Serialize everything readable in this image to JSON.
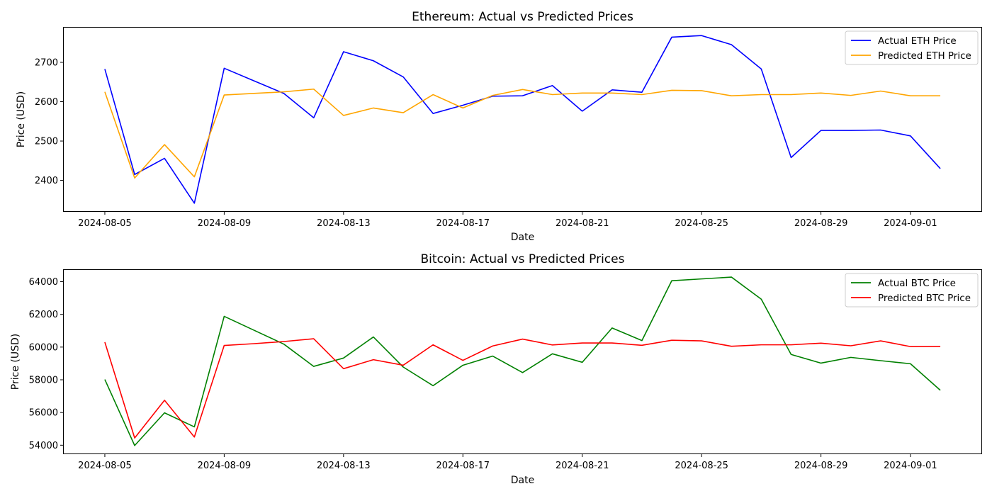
{
  "chart_data": [
    {
      "type": "line",
      "title": "Ethereum: Actual vs Predicted Prices",
      "xlabel": "Date",
      "ylabel": "Price (USD)",
      "x": [
        "2024-08-05",
        "2024-08-06",
        "2024-08-07",
        "2024-08-08",
        "2024-08-09",
        "2024-08-10",
        "2024-08-11",
        "2024-08-12",
        "2024-08-13",
        "2024-08-14",
        "2024-08-15",
        "2024-08-16",
        "2024-08-17",
        "2024-08-18",
        "2024-08-19",
        "2024-08-20",
        "2024-08-21",
        "2024-08-22",
        "2024-08-23",
        "2024-08-24",
        "2024-08-25",
        "2024-08-26",
        "2024-08-27",
        "2024-08-28",
        "2024-08-29",
        "2024-08-30",
        "2024-08-31",
        "2024-09-01",
        "2024-09-02"
      ],
      "xticks": [
        "2024-08-05",
        "2024-08-09",
        "2024-08-13",
        "2024-08-17",
        "2024-08-21",
        "2024-08-25",
        "2024-08-29",
        "2024-09-01"
      ],
      "xlim": [
        "2024-08-03T14:24",
        "2024-09-03T09:36"
      ],
      "yticks": [
        2400,
        2500,
        2600,
        2700
      ],
      "ylim": [
        2320,
        2790
      ],
      "grid": false,
      "legend": "upper right",
      "series": [
        {
          "name": "Actual ETH Price",
          "color": "#0000ff",
          "values": [
            2683,
            2415,
            2456,
            2342,
            2685,
            2653,
            2621,
            2559,
            2727,
            2704,
            2663,
            2570,
            2591,
            2614,
            2615,
            2641,
            2576,
            2630,
            2624,
            2764,
            2768,
            2745,
            2683,
            2458,
            2527,
            2527,
            2528,
            2513,
            2430
          ]
        },
        {
          "name": "Predicted ETH Price",
          "color": "#ffa500",
          "values": [
            2625,
            2406,
            2491,
            2409,
            2617,
            2621,
            2625,
            2632,
            2565,
            2584,
            2572,
            2618,
            2584,
            2616,
            2631,
            2618,
            2622,
            2622,
            2618,
            2629,
            2628,
            2615,
            2618,
            2618,
            2622,
            2616,
            2627,
            2615,
            2615
          ]
        }
      ]
    },
    {
      "type": "line",
      "title": "Bitcoin: Actual vs Predicted Prices",
      "xlabel": "Date",
      "ylabel": "Price (USD)",
      "x": [
        "2024-08-05",
        "2024-08-06",
        "2024-08-07",
        "2024-08-08",
        "2024-08-09",
        "2024-08-10",
        "2024-08-11",
        "2024-08-12",
        "2024-08-13",
        "2024-08-14",
        "2024-08-15",
        "2024-08-16",
        "2024-08-17",
        "2024-08-18",
        "2024-08-19",
        "2024-08-20",
        "2024-08-21",
        "2024-08-22",
        "2024-08-23",
        "2024-08-24",
        "2024-08-25",
        "2024-08-26",
        "2024-08-27",
        "2024-08-28",
        "2024-08-29",
        "2024-08-30",
        "2024-08-31",
        "2024-09-01",
        "2024-09-02"
      ],
      "xticks": [
        "2024-08-05",
        "2024-08-09",
        "2024-08-13",
        "2024-08-17",
        "2024-08-21",
        "2024-08-25",
        "2024-08-29",
        "2024-09-01"
      ],
      "xlim": [
        "2024-08-03T14:24",
        "2024-09-03T09:36"
      ],
      "yticks": [
        54000,
        56000,
        58000,
        60000,
        62000,
        64000
      ],
      "ylim": [
        53450,
        64760
      ],
      "grid": false,
      "legend": "upper right",
      "series": [
        {
          "name": "Actual BTC Price",
          "color": "#008000",
          "values": [
            58020,
            53980,
            55980,
            55120,
            61880,
            61030,
            60180,
            58820,
            59330,
            60620,
            58780,
            57640,
            58890,
            59450,
            58440,
            59590,
            59070,
            61170,
            60400,
            64060,
            64170,
            64280,
            62930,
            59550,
            59020,
            59370,
            59170,
            58980,
            57360
          ]
        },
        {
          "name": "Predicted BTC Price",
          "color": "#ff0000",
          "values": [
            60300,
            54440,
            56750,
            54500,
            60100,
            60210,
            60340,
            60510,
            58680,
            59230,
            58890,
            60140,
            59190,
            60070,
            60490,
            60130,
            60250,
            60250,
            60110,
            60420,
            60380,
            60050,
            60140,
            60140,
            60240,
            60080,
            60380,
            60030,
            60040
          ]
        }
      ]
    }
  ]
}
